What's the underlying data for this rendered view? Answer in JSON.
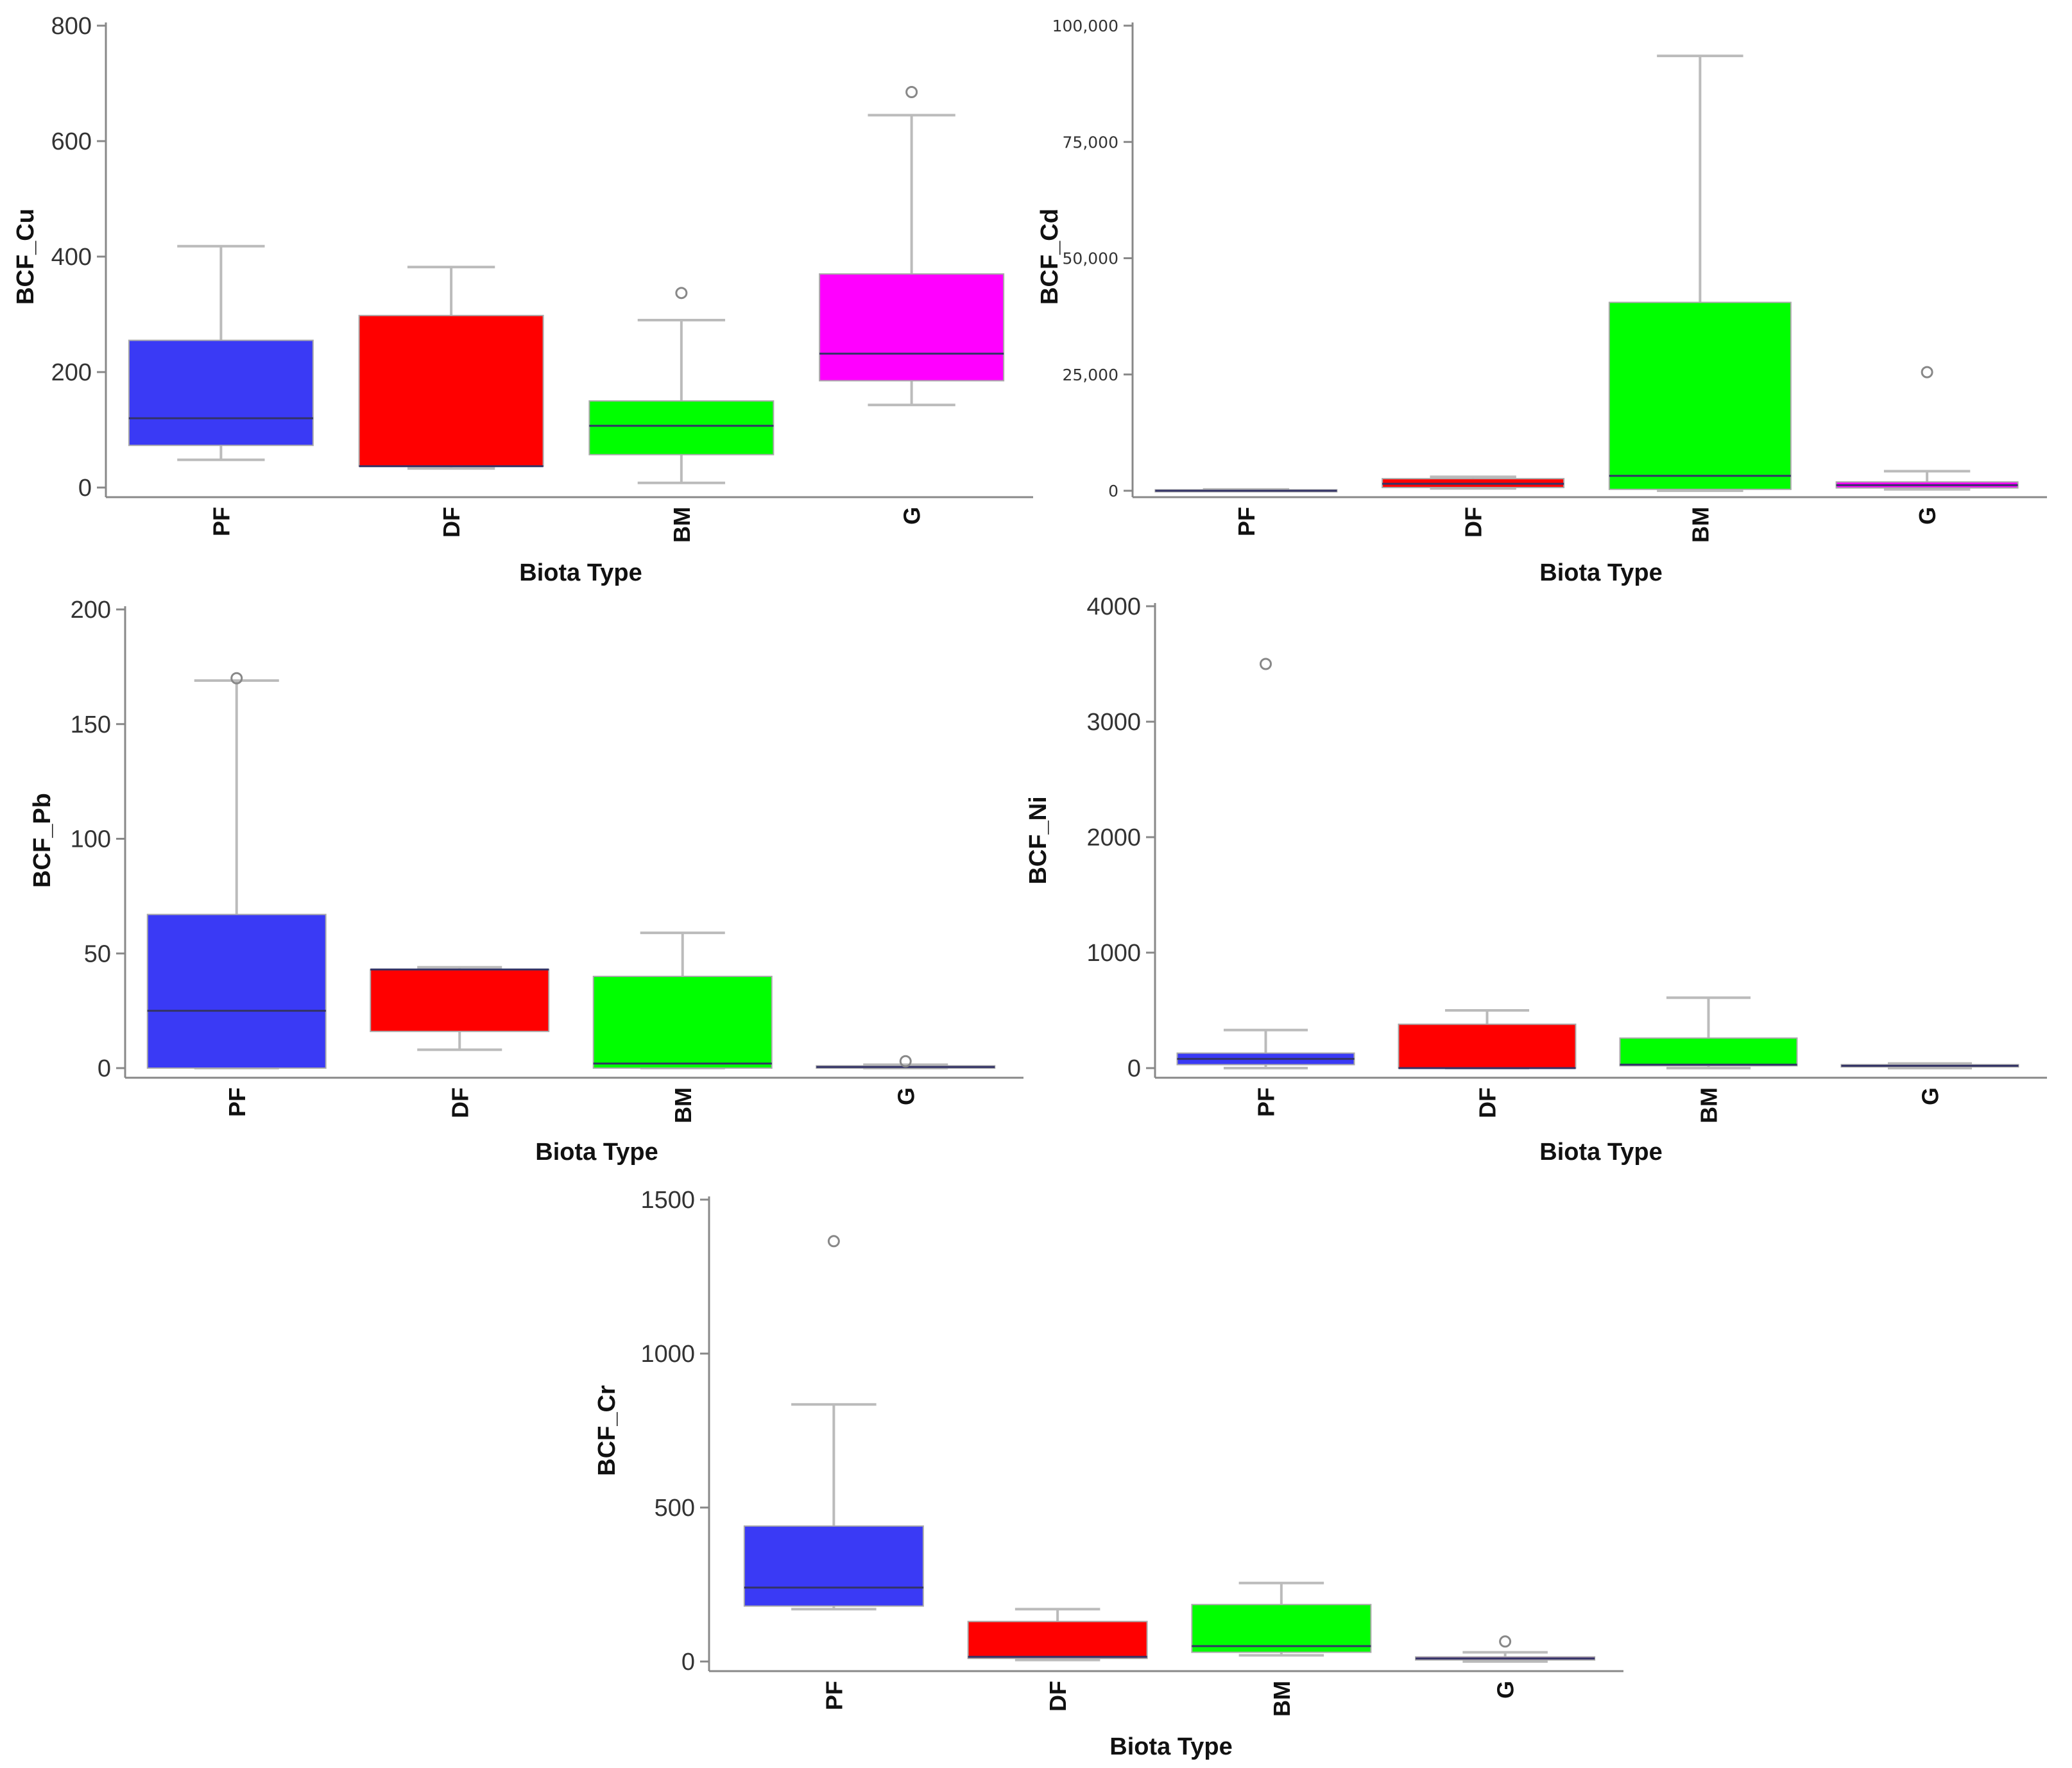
{
  "colors": {
    "PF": "#3a3af5",
    "DF": "#ff0000",
    "BM": "#00ff00",
    "G": "#ff00ff",
    "median": "#333366"
  },
  "chart_data": [
    {
      "id": "cu",
      "type": "box",
      "ylabel": "BCF_Cu",
      "xlabel": "Biota Type",
      "categories": [
        "PF",
        "DF",
        "BM",
        "G"
      ],
      "ylim": [
        0,
        800
      ],
      "yticks": [
        0,
        200,
        400,
        600,
        800
      ],
      "ytick_labels": [
        "0",
        "200",
        "400",
        "600",
        "800"
      ],
      "boxes": [
        {
          "category": "PF",
          "whisker_low": 48,
          "q1": 73,
          "median": 120,
          "q3": 255,
          "whisker_high": 418,
          "outliers": []
        },
        {
          "category": "DF",
          "whisker_low": 33,
          "q1": 37,
          "median": 37,
          "q3": 298,
          "whisker_high": 382,
          "outliers": []
        },
        {
          "category": "BM",
          "whisker_low": 8,
          "q1": 57,
          "median": 107,
          "q3": 150,
          "whisker_high": 290,
          "outliers": [
            337
          ]
        },
        {
          "category": "G",
          "whisker_low": 143,
          "q1": 185,
          "median": 232,
          "q3": 370,
          "whisker_high": 645,
          "outliers": [
            685
          ]
        }
      ]
    },
    {
      "id": "cd",
      "type": "box",
      "ylabel": "BCF_Cd",
      "xlabel": "Biota Type",
      "categories": [
        "PF",
        "DF",
        "BM",
        "G"
      ],
      "ylim": [
        0,
        100000
      ],
      "yticks": [
        0,
        25000,
        50000,
        75000,
        100000
      ],
      "ytick_labels": [
        "0",
        "25,000",
        "50,000",
        "75,000",
        "100,000"
      ],
      "boxes": [
        {
          "category": "PF",
          "whisker_low": 0,
          "q1": 0,
          "median": 0,
          "q3": 200,
          "whisker_high": 300,
          "outliers": []
        },
        {
          "category": "DF",
          "whisker_low": 500,
          "q1": 700,
          "median": 1500,
          "q3": 2600,
          "whisker_high": 3000,
          "outliers": []
        },
        {
          "category": "BM",
          "whisker_low": 0,
          "q1": 300,
          "median": 3200,
          "q3": 40500,
          "whisker_high": 93500,
          "outliers": []
        },
        {
          "category": "G",
          "whisker_low": 300,
          "q1": 600,
          "median": 1200,
          "q3": 1900,
          "whisker_high": 4200,
          "outliers": [
            25500
          ]
        }
      ]
    },
    {
      "id": "pb",
      "type": "box",
      "ylabel": "BCF_Pb",
      "xlabel": "Biota Type",
      "categories": [
        "PF",
        "DF",
        "BM",
        "G"
      ],
      "ylim": [
        0,
        200
      ],
      "yticks": [
        0,
        50,
        100,
        150,
        200
      ],
      "ytick_labels": [
        "0",
        "50",
        "100",
        "150",
        "200"
      ],
      "boxes": [
        {
          "category": "PF",
          "whisker_low": 0,
          "q1": 0,
          "median": 25,
          "q3": 67,
          "whisker_high": 169,
          "outliers": [
            170
          ]
        },
        {
          "category": "DF",
          "whisker_low": 8,
          "q1": 16,
          "median": 43,
          "q3": 43,
          "whisker_high": 44,
          "outliers": []
        },
        {
          "category": "BM",
          "whisker_low": 0,
          "q1": 0,
          "median": 2,
          "q3": 40,
          "whisker_high": 59,
          "outliers": []
        },
        {
          "category": "G",
          "whisker_low": 0,
          "q1": 0,
          "median": 0.5,
          "q3": 1,
          "whisker_high": 1.5,
          "outliers": [
            3
          ]
        }
      ]
    },
    {
      "id": "ni",
      "type": "box",
      "ylabel": "BCF_Ni",
      "xlabel": "Biota Type",
      "categories": [
        "PF",
        "DF",
        "BM",
        "G"
      ],
      "ylim": [
        0,
        4000
      ],
      "yticks": [
        0,
        1000,
        2000,
        3000,
        4000
      ],
      "ytick_labels": [
        "0",
        "1000",
        "2000",
        "3000",
        "4000"
      ],
      "boxes": [
        {
          "category": "PF",
          "whisker_low": 0,
          "q1": 30,
          "median": 80,
          "q3": 130,
          "whisker_high": 330,
          "outliers": [
            3500
          ]
        },
        {
          "category": "DF",
          "whisker_low": 0,
          "q1": 0,
          "median": 0,
          "q3": 380,
          "whisker_high": 500,
          "outliers": []
        },
        {
          "category": "BM",
          "whisker_low": 0,
          "q1": 20,
          "median": 30,
          "q3": 260,
          "whisker_high": 610,
          "outliers": []
        },
        {
          "category": "G",
          "whisker_low": 0,
          "q1": 10,
          "median": 20,
          "q3": 30,
          "whisker_high": 40,
          "outliers": []
        }
      ]
    },
    {
      "id": "cr",
      "type": "box",
      "ylabel": "BCF_Cr",
      "xlabel": "Biota Type",
      "categories": [
        "PF",
        "DF",
        "BM",
        "G"
      ],
      "ylim": [
        0,
        1500
      ],
      "yticks": [
        0,
        500,
        1000,
        1500
      ],
      "ytick_labels": [
        "0",
        "500",
        "1000",
        "1500"
      ],
      "boxes": [
        {
          "category": "PF",
          "whisker_low": 170,
          "q1": 180,
          "median": 240,
          "q3": 440,
          "whisker_high": 835,
          "outliers": [
            1365
          ]
        },
        {
          "category": "DF",
          "whisker_low": 5,
          "q1": 10,
          "median": 15,
          "q3": 130,
          "whisker_high": 170,
          "outliers": []
        },
        {
          "category": "BM",
          "whisker_low": 20,
          "q1": 30,
          "median": 50,
          "q3": 185,
          "whisker_high": 255,
          "outliers": []
        },
        {
          "category": "G",
          "whisker_low": 0,
          "q1": 5,
          "median": 10,
          "q3": 15,
          "whisker_high": 30,
          "outliers": [
            65
          ]
        }
      ]
    }
  ]
}
